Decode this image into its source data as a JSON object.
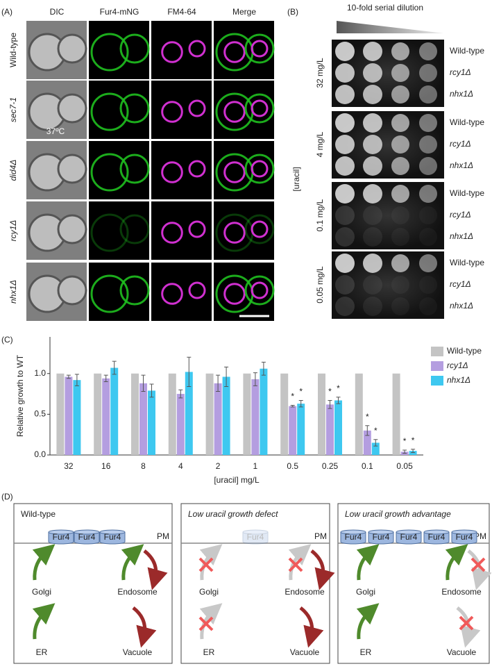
{
  "panel_a": {
    "label": "(A)",
    "columns": [
      "DIC",
      "Fur4-mNG",
      "FM4-64",
      "Merge"
    ],
    "rows": [
      "Wild-type",
      "sec7-1",
      "did4Δ",
      "rcy1Δ",
      "nhx1Δ"
    ],
    "temperature": "37ºC"
  },
  "panel_b": {
    "label": "(B)",
    "dilution": "10-fold serial dilution",
    "axis_label": "[uracil]",
    "groups": [
      {
        "concentration": "32 mg/L",
        "strains": [
          "Wild-type",
          "rcy1Δ",
          "nhx1Δ"
        ]
      },
      {
        "concentration": "4  mg/L",
        "strains": [
          "Wild-type",
          "rcy1Δ",
          "nhx1Δ"
        ]
      },
      {
        "concentration": "0.1 mg/L",
        "strains": [
          "Wild-type",
          "rcy1Δ",
          "nhx1Δ"
        ]
      },
      {
        "concentration": "0.05 mg/L",
        "strains": [
          "Wild-type",
          "rcy1Δ",
          "nhx1Δ"
        ]
      }
    ]
  },
  "chart_data": {
    "type": "bar",
    "label": "(C)",
    "x_label": "[uracil] mg/L",
    "y_label": "Relative growth to WT",
    "categories": [
      "32",
      "16",
      "8",
      "4",
      "2",
      "1",
      "0.5",
      "0.25",
      "0.1",
      "0.05"
    ],
    "ylim": [
      0,
      1.45
    ],
    "yticks": [
      {
        "value": 0,
        "label": "0.0"
      },
      0.5,
      {
        "value": 1,
        "label": "1.0"
      }
    ],
    "series": [
      {
        "name": "Wild-type",
        "color": "#c4c4c4",
        "values": [
          1,
          1,
          1,
          1,
          1,
          1,
          1,
          1,
          1,
          1
        ]
      },
      {
        "name": "rcy1Δ",
        "color": "#b49ee0",
        "values": [
          0.96,
          0.94,
          0.88,
          0.75,
          0.88,
          0.93,
          0.6,
          0.62,
          0.3,
          0.04
        ],
        "errors": [
          0.02,
          0.04,
          0.1,
          0.05,
          0.1,
          0.08,
          0.01,
          0.05,
          0.06,
          0.02
        ],
        "significance": [
          null,
          null,
          null,
          null,
          null,
          null,
          "*",
          "*",
          "*",
          "*"
        ]
      },
      {
        "name": "nhx1Δ",
        "color": "#3ec8f0",
        "values": [
          0.92,
          1.07,
          0.79,
          1.02,
          0.96,
          1.06,
          0.63,
          0.67,
          0.15,
          0.05
        ],
        "errors": [
          0.07,
          0.08,
          0.08,
          0.18,
          0.12,
          0.08,
          0.04,
          0.04,
          0.04,
          0.02
        ],
        "significance": [
          null,
          null,
          null,
          null,
          null,
          null,
          "*",
          "*",
          "*",
          "*"
        ]
      }
    ]
  },
  "panel_d": {
    "label": "(D)",
    "boxes": [
      {
        "title": "Wild-type",
        "pm": "PM",
        "fur4": [
          "Fur4",
          "Fur4",
          "Fur4"
        ],
        "compartments": [
          "Golgi",
          "Endosome",
          "ER",
          "Vacuole"
        ]
      },
      {
        "title": "Low uracil growth defect",
        "pm": "PM",
        "fur4": [
          "Fur4"
        ],
        "compartments": [
          "Golgi",
          "Endosome",
          "ER",
          "Vacuole"
        ]
      },
      {
        "title": "Low uracil growth advantage",
        "pm": "PM",
        "fur4": [
          "Fur4",
          "Fur4",
          "Fur4",
          "Fur4",
          "Fur4"
        ],
        "compartments": [
          "Golgi",
          "Endosome",
          "ER",
          "Vacuole"
        ]
      }
    ]
  }
}
